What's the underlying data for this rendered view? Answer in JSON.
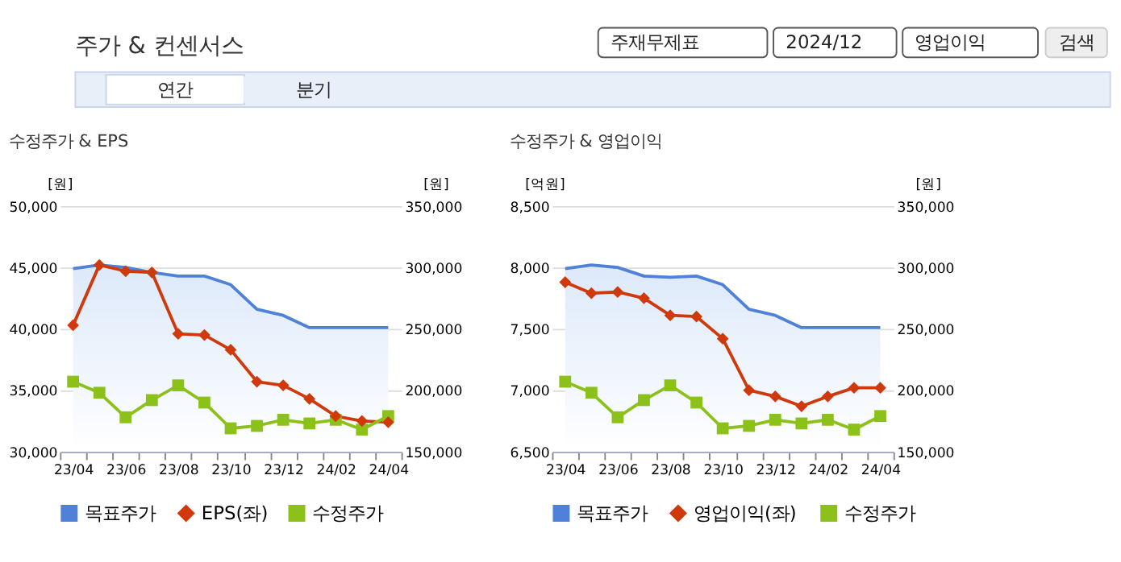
{
  "chart_data": [
    {
      "type": "other",
      "title": "주가 & 컨센서스",
      "annotations": [
        "주재무제표",
        "2024/12",
        "영업이익",
        "검색",
        "연간",
        "분기"
      ]
    },
    {
      "type": "line",
      "title": "수정주가 & EPS",
      "ylabel": "[원]",
      "y2label": "[원]",
      "categories": [
        "23/04",
        null,
        "23/06",
        null,
        "23/08",
        null,
        "23/10",
        null,
        "23/12",
        null,
        "24/02",
        null,
        "24/04"
      ],
      "ylim": [
        30000,
        50000
      ],
      "yticks": [
        {
          "value": 30000,
          "label": "30,000"
        },
        {
          "value": 35000,
          "label": "35,000"
        },
        {
          "value": 40000,
          "label": "40,000"
        },
        {
          "value": 45000,
          "label": "45,000"
        },
        {
          "value": 50000,
          "label": "50,000"
        }
      ],
      "y2lim": [
        150000,
        350000
      ],
      "y2ticks": [
        {
          "value": 150000,
          "label": "150,000"
        },
        {
          "value": 200000,
          "label": "200,000"
        },
        {
          "value": 250000,
          "label": "250,000"
        },
        {
          "value": 300000,
          "label": "300,000"
        },
        {
          "value": 350000,
          "label": "350,000"
        }
      ],
      "grid": "y",
      "legend": "bottom",
      "series": [
        {
          "name": "목표주가",
          "type": "area",
          "axis": "y2",
          "color": "#4f81d9",
          "marker": "none",
          "values": [
            299000,
            302000,
            300000,
            296000,
            293000,
            293000,
            286000,
            266000,
            261000,
            251000,
            251000,
            251000,
            251000
          ]
        },
        {
          "name": "EPS(좌)",
          "type": "line",
          "color": "#d0390b",
          "marker": "diamond",
          "values": [
            40300,
            45200,
            44700,
            44600,
            39600,
            39500,
            38300,
            35700,
            35400,
            34300,
            32900,
            32500,
            32400
          ]
        },
        {
          "name": "수정주가",
          "type": "line",
          "axis": "y2",
          "color": "#8cc11a",
          "marker": "square",
          "values": [
            207000,
            198000,
            178000,
            192000,
            204000,
            190000,
            169000,
            171000,
            176000,
            173000,
            176000,
            168000,
            179000
          ]
        }
      ]
    },
    {
      "type": "line",
      "title": "수정주가 & 영업이익",
      "ylabel": "[억원]",
      "y2label": "[원]",
      "categories": [
        "23/04",
        null,
        "23/06",
        null,
        "23/08",
        null,
        "23/10",
        null,
        "23/12",
        null,
        "24/02",
        null,
        "24/04"
      ],
      "ylim": [
        6500,
        8500
      ],
      "yticks": [
        {
          "value": 6500,
          "label": "6,500"
        },
        {
          "value": 7000,
          "label": "7,000"
        },
        {
          "value": 7500,
          "label": "7,500"
        },
        {
          "value": 8000,
          "label": "8,000"
        },
        {
          "value": 8500,
          "label": "8,500"
        }
      ],
      "y2lim": [
        150000,
        350000
      ],
      "y2ticks": [
        {
          "value": 150000,
          "label": "150,000"
        },
        {
          "value": 200000,
          "label": "200,000"
        },
        {
          "value": 250000,
          "label": "250,000"
        },
        {
          "value": 300000,
          "label": "300,000"
        },
        {
          "value": 350000,
          "label": "350,000"
        }
      ],
      "grid": "y",
      "legend": "bottom",
      "series": [
        {
          "name": "목표주가",
          "type": "area",
          "axis": "y2",
          "color": "#4f81d9",
          "marker": "none",
          "values": [
            299000,
            302000,
            300000,
            293000,
            292000,
            293000,
            286000,
            266000,
            261000,
            251000,
            251000,
            251000,
            251000
          ]
        },
        {
          "name": "영업이익(좌)",
          "type": "line",
          "color": "#d0390b",
          "marker": "diamond",
          "values": [
            7880,
            7790,
            7800,
            7750,
            7610,
            7600,
            7420,
            7000,
            6950,
            6870,
            6950,
            7020,
            7020
          ]
        },
        {
          "name": "수정주가",
          "type": "line",
          "axis": "y2",
          "color": "#8cc11a",
          "marker": "square",
          "values": [
            207000,
            198000,
            178000,
            192000,
            204000,
            190000,
            169000,
            171000,
            176000,
            173000,
            176000,
            168000,
            179000
          ]
        }
      ]
    }
  ]
}
